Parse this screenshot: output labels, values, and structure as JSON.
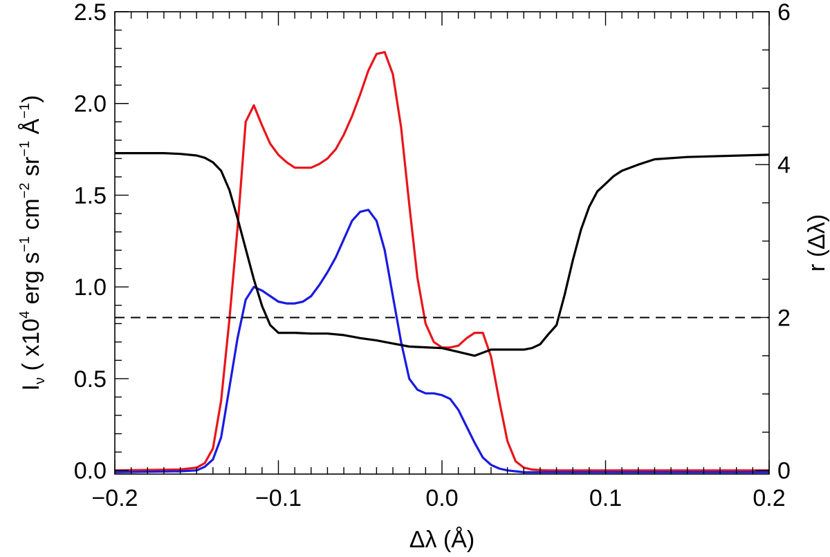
{
  "chart_data": {
    "type": "line",
    "xlabel_parts": {
      "prefix": "Δλ (",
      "unit": "Å",
      "suffix": ")"
    },
    "ylabel_left_parts": {
      "main": "I",
      "sub": "ν",
      "u1": " ( x10",
      "e1": "4",
      "u2": " erg s",
      "e2": "−1",
      "u3": " cm",
      "e3": "−2",
      "u4": " sr",
      "e4": "−1",
      "u5": " Å",
      "e5": "−1",
      "u6": ")"
    },
    "ylabel_right": "r (Δλ)",
    "xlim": [
      -0.2,
      0.2
    ],
    "ylim_left": [
      -0.02,
      2.5
    ],
    "ylim_right": [
      -0.048,
      6.0
    ],
    "x_ticks": [
      {
        "value": -0.2,
        "label": "−0.2"
      },
      {
        "value": -0.1,
        "label": "−0.1"
      },
      {
        "value": 0.0,
        "label": "0.0"
      },
      {
        "value": 0.1,
        "label": "0.1"
      },
      {
        "value": 0.2,
        "label": "0.2"
      }
    ],
    "y_left_ticks": [
      {
        "value": 0.0,
        "label": "0.0"
      },
      {
        "value": 0.5,
        "label": "0.5"
      },
      {
        "value": 1.0,
        "label": "1.0"
      },
      {
        "value": 1.5,
        "label": "1.5"
      },
      {
        "value": 2.0,
        "label": "2.0"
      },
      {
        "value": 2.5,
        "label": "2.5"
      }
    ],
    "y_right_ticks": [
      {
        "value": 0,
        "label": "0"
      },
      {
        "value": 2,
        "label": "2"
      },
      {
        "value": 4,
        "label": "4"
      },
      {
        "value": 6,
        "label": "6"
      }
    ],
    "reference_line": {
      "axis": "right",
      "value": 2.0,
      "style": "dashed",
      "color": "#000000"
    },
    "series": [
      {
        "color": "#e8151a",
        "axis": "left",
        "x": [
          -0.2,
          -0.16,
          -0.15,
          -0.145,
          -0.14,
          -0.135,
          -0.13,
          -0.125,
          -0.12,
          -0.115,
          -0.11,
          -0.105,
          -0.1,
          -0.095,
          -0.09,
          -0.085,
          -0.08,
          -0.075,
          -0.07,
          -0.065,
          -0.06,
          -0.055,
          -0.05,
          -0.045,
          -0.04,
          -0.035,
          -0.03,
          -0.025,
          -0.02,
          -0.015,
          -0.01,
          -0.005,
          0.0,
          0.005,
          0.01,
          0.015,
          0.02,
          0.025,
          0.03,
          0.035,
          0.04,
          0.045,
          0.05,
          0.055,
          0.06,
          0.065,
          0.07,
          0.075,
          0.08,
          0.085,
          0.09,
          0.095,
          0.1,
          0.105,
          0.11,
          0.12,
          0.2
        ],
        "y": [
          0.0,
          0.005,
          0.015,
          0.04,
          0.12,
          0.38,
          0.82,
          1.32,
          1.9,
          1.99,
          1.88,
          1.78,
          1.72,
          1.68,
          1.65,
          1.65,
          1.65,
          1.67,
          1.7,
          1.75,
          1.83,
          1.93,
          2.05,
          2.18,
          2.27,
          2.28,
          2.16,
          1.87,
          1.45,
          1.05,
          0.8,
          0.7,
          0.67,
          0.67,
          0.68,
          0.72,
          0.75,
          0.75,
          0.62,
          0.38,
          0.16,
          0.05,
          0.015,
          0.005,
          0.002,
          0.0,
          0.0,
          0.0,
          0.0,
          0.0,
          0.0,
          0.0,
          0.0,
          0.0,
          0.0,
          0.0,
          0.0
        ]
      },
      {
        "color": "#1a1ae0",
        "axis": "left",
        "x": [
          -0.2,
          -0.16,
          -0.15,
          -0.145,
          -0.14,
          -0.135,
          -0.13,
          -0.125,
          -0.12,
          -0.115,
          -0.11,
          -0.105,
          -0.1,
          -0.095,
          -0.09,
          -0.085,
          -0.08,
          -0.075,
          -0.07,
          -0.065,
          -0.06,
          -0.055,
          -0.05,
          -0.045,
          -0.04,
          -0.035,
          -0.03,
          -0.025,
          -0.02,
          -0.015,
          -0.01,
          -0.005,
          0.0,
          0.005,
          0.01,
          0.015,
          0.02,
          0.025,
          0.03,
          0.035,
          0.04,
          0.045,
          0.05,
          0.055,
          0.06,
          0.065,
          0.07,
          0.075,
          0.08,
          0.085,
          0.09,
          0.095,
          0.1,
          0.2
        ],
        "y": [
          -0.01,
          -0.005,
          0.0,
          0.02,
          0.06,
          0.18,
          0.45,
          0.72,
          0.93,
          1.0,
          0.98,
          0.95,
          0.92,
          0.91,
          0.91,
          0.92,
          0.95,
          1.01,
          1.08,
          1.16,
          1.26,
          1.36,
          1.41,
          1.42,
          1.36,
          1.2,
          0.95,
          0.7,
          0.5,
          0.44,
          0.42,
          0.42,
          0.41,
          0.39,
          0.33,
          0.24,
          0.15,
          0.07,
          0.03,
          0.01,
          0.0,
          -0.005,
          -0.01,
          -0.01,
          -0.01,
          -0.01,
          -0.01,
          -0.01,
          -0.01,
          -0.01,
          -0.01,
          -0.01,
          -0.01,
          -0.01
        ]
      },
      {
        "color": "#000000",
        "axis": "right",
        "x": [
          -0.2,
          -0.17,
          -0.16,
          -0.15,
          -0.145,
          -0.14,
          -0.135,
          -0.13,
          -0.125,
          -0.12,
          -0.115,
          -0.11,
          -0.105,
          -0.1,
          -0.095,
          -0.09,
          -0.08,
          -0.07,
          -0.06,
          -0.05,
          -0.04,
          -0.03,
          -0.02,
          -0.01,
          0.0,
          0.01,
          0.02,
          0.03,
          0.04,
          0.05,
          0.055,
          0.06,
          0.065,
          0.07,
          0.075,
          0.08,
          0.085,
          0.09,
          0.095,
          0.1,
          0.105,
          0.11,
          0.12,
          0.13,
          0.15,
          0.2
        ],
        "y": [
          4.15,
          4.15,
          4.14,
          4.12,
          4.09,
          4.03,
          3.92,
          3.67,
          3.3,
          2.9,
          2.5,
          2.15,
          1.9,
          1.8,
          1.8,
          1.8,
          1.79,
          1.79,
          1.77,
          1.73,
          1.7,
          1.66,
          1.62,
          1.61,
          1.6,
          1.55,
          1.5,
          1.58,
          1.58,
          1.58,
          1.6,
          1.65,
          1.78,
          1.9,
          2.3,
          2.75,
          3.15,
          3.45,
          3.65,
          3.75,
          3.85,
          3.92,
          4.0,
          4.07,
          4.1,
          4.13
        ]
      }
    ]
  }
}
